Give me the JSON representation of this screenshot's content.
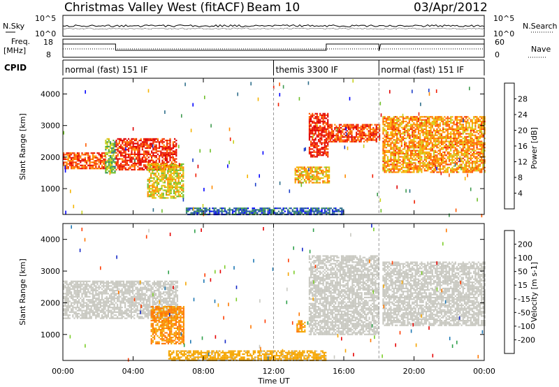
{
  "header": {
    "station_title": "Christmas Valley West (fitACF)",
    "beam": "Beam 10",
    "date": "03/Apr/2012"
  },
  "strip_labels": {
    "nsky": "N.Sky",
    "nsearch": "N.Search",
    "freq_line1": "Freq.",
    "freq_line2": "[MHz]",
    "nave": "Nave",
    "cpid": "CPID",
    "noise_ticks_left": [
      "10^5",
      "10^0"
    ],
    "noise_ticks_right": [
      "10^5",
      "10^0"
    ],
    "freq_ticks": [
      "18",
      "8"
    ],
    "nave_ticks": [
      "60",
      "0"
    ]
  },
  "cpid_segments": [
    {
      "label": "normal (fast) 151 IF",
      "start_hour": 0.0,
      "end_hour": 12.0
    },
    {
      "label": "themis 3300 IF",
      "start_hour": 12.0,
      "end_hour": 18.0
    },
    {
      "label": "normal (fast) 151 IF",
      "start_hour": 18.0,
      "end_hour": 24.0
    }
  ],
  "axes": {
    "xlabel": "Time UT",
    "x_ticks": [
      "00:00",
      "04:00",
      "08:00",
      "12:00",
      "16:00",
      "20:00",
      "00:00"
    ],
    "ylabel": "Slant Range [km]",
    "y_ticks": [
      "1000",
      "2000",
      "3000",
      "4000"
    ]
  },
  "power_colorbar": {
    "label": "Power [dB]",
    "ticks": [
      "4",
      "8",
      "12",
      "16",
      "20",
      "24",
      "28"
    ],
    "colors": [
      "#0000ff",
      "#1a3cc8",
      "#2e6e8a",
      "#3d9a4e",
      "#6fbf2a",
      "#c8d21e",
      "#f5b400",
      "#ff8c00",
      "#ff5a00",
      "#f01e00",
      "#e00000"
    ]
  },
  "velocity_colorbar": {
    "label": "Velocity [m s-1]",
    "ticks": [
      "200",
      "100",
      "50",
      "15",
      "-15",
      "-50",
      "-100",
      "-200"
    ],
    "colors": [
      "#1428c8",
      "#1e78b4",
      "#2ea04a",
      "#7ccd28",
      "#c8c8c0",
      "#f5a500",
      "#ff7800",
      "#ff3c00",
      "#e60000"
    ]
  },
  "chart_data": {
    "type": "heatmap",
    "title": "Christmas Valley West (fitACF) Beam 10 03/Apr/2012",
    "xlabel": "Time UT",
    "ylabel": "Slant Range [km]",
    "xlim": [
      0,
      24
    ],
    "ylim": [
      180,
      4500
    ],
    "panels": [
      {
        "name": "Power [dB]",
        "colorbar_range": [
          0,
          30
        ],
        "echo_bands": [
          {
            "t_start": 0.0,
            "t_end": 2.4,
            "range_start": 1650,
            "range_end": 2150,
            "value": 24
          },
          {
            "t_start": 2.4,
            "t_end": 3.0,
            "range_start": 1500,
            "range_end": 2600,
            "value": 12
          },
          {
            "t_start": 3.0,
            "t_end": 6.5,
            "range_start": 1600,
            "range_end": 2600,
            "value": 26
          },
          {
            "t_start": 4.8,
            "t_end": 6.9,
            "range_start": 700,
            "range_end": 1800,
            "value": 16
          },
          {
            "t_start": 14.0,
            "t_end": 15.1,
            "range_start": 2000,
            "range_end": 3400,
            "value": 27
          },
          {
            "t_start": 15.1,
            "t_end": 18.0,
            "range_start": 2500,
            "range_end": 3050,
            "value": 25
          },
          {
            "t_start": 13.2,
            "t_end": 15.2,
            "range_start": 1200,
            "range_end": 1700,
            "value": 18
          },
          {
            "t_start": 18.2,
            "t_end": 24.0,
            "range_start": 1500,
            "range_end": 3300,
            "value": 20
          },
          {
            "t_start": 7.0,
            "t_end": 16.0,
            "range_start": 180,
            "range_end": 400,
            "value": 6
          }
        ]
      },
      {
        "name": "Velocity [m s-1]",
        "colorbar_range": [
          -200,
          200
        ],
        "echo_bands": [
          {
            "t_start": 0.0,
            "t_end": 6.5,
            "range_start": 1500,
            "range_end": 2700,
            "value": 0
          },
          {
            "t_start": 5.0,
            "t_end": 6.9,
            "range_start": 700,
            "range_end": 1900,
            "value": -70
          },
          {
            "t_start": 14.0,
            "t_end": 18.0,
            "range_start": 1000,
            "range_end": 3500,
            "value": 0
          },
          {
            "t_start": 18.2,
            "t_end": 24.0,
            "range_start": 1300,
            "range_end": 3300,
            "value": 0
          },
          {
            "t_start": 13.3,
            "t_end": 13.8,
            "range_start": 1100,
            "range_end": 1450,
            "value": -60
          },
          {
            "t_start": 6.0,
            "t_end": 15.0,
            "range_start": 180,
            "range_end": 500,
            "value": -40
          }
        ]
      }
    ]
  }
}
